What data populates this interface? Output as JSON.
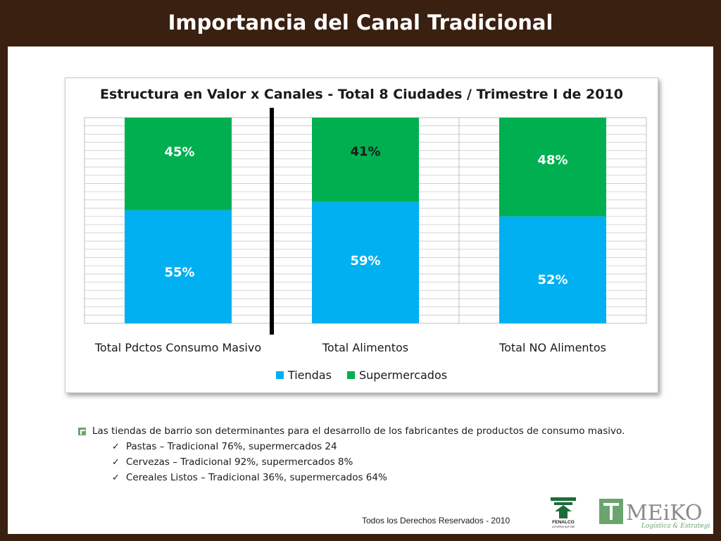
{
  "slide_title": "Importancia del Canal Tradicional",
  "colors": {
    "tiendas": "#00b0f0",
    "supermercados": "#00b050",
    "background": "#3a2010"
  },
  "chart_data": {
    "type": "bar",
    "stacked": true,
    "title": "Estructura en Valor x Canales - Total 8 Ciudades  / Trimestre I de 2010",
    "categories": [
      "Total Pdctos Consumo Masivo",
      "Total Alimentos",
      "Total NO Alimentos"
    ],
    "series": [
      {
        "name": "Tiendas",
        "values": [
          55,
          59,
          52
        ],
        "labels": [
          "55%",
          "59%",
          "52%"
        ]
      },
      {
        "name": "Supermercados",
        "values": [
          45,
          41,
          48
        ],
        "labels": [
          "45%",
          "41%",
          "48%"
        ]
      }
    ],
    "ylim": [
      0,
      100
    ],
    "grid": true,
    "legend_position": "bottom"
  },
  "bullets": {
    "main": "Las tiendas de barrio son determinantes para el desarrollo de los fabricantes de productos de consumo masivo.",
    "items": [
      "Pastas – Tradicional 76%, supermercados 24",
      "Cervezas – Tradicional 92%, supermercados 8%",
      "Cereales Listos – Tradicional 36%, supermercados 64%"
    ]
  },
  "footer": "Todos los Derechos Reservados - 2010",
  "logos": {
    "fenalco": "FENALCO",
    "fenalco_tagline": "LA FUERZA QUE UNE",
    "meiko": "MEiKO",
    "meiko_tagline": "Logística & Estrategia"
  }
}
